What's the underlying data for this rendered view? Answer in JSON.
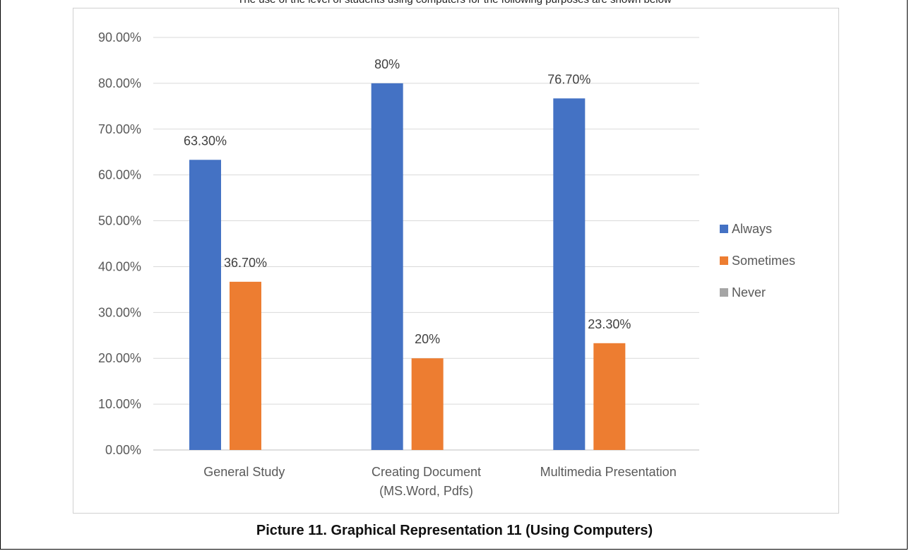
{
  "page": {
    "top_text": "The use of the level of students using computers for the following purposes are shown below",
    "caption": "Picture 11. Graphical Representation 11 (Using Computers)"
  },
  "chart_data": {
    "type": "bar",
    "title": "",
    "xlabel": "",
    "ylabel": "",
    "ylim": [
      0,
      0.9
    ],
    "y_ticks": [
      0,
      0.1,
      0.2,
      0.3,
      0.4,
      0.5,
      0.6,
      0.7,
      0.8,
      0.9
    ],
    "y_tick_labels": [
      "0.00%",
      "10.00%",
      "20.00%",
      "30.00%",
      "40.00%",
      "50.00%",
      "60.00%",
      "70.00%",
      "80.00%",
      "90.00%"
    ],
    "categories": [
      "General Study",
      "Creating Document (MS.Word, Pdfs)",
      "Multimedia Presentation"
    ],
    "category_label_lines": [
      [
        "General Study"
      ],
      [
        "Creating Document",
        "(MS.Word, Pdfs)"
      ],
      [
        "Multimedia Presentation"
      ]
    ],
    "grid": true,
    "legend_position": "right",
    "series": [
      {
        "name": "Always",
        "color": "#4472C4",
        "values": [
          0.633,
          0.8,
          0.767
        ],
        "labels": [
          "63.30%",
          "80%",
          "76.70%"
        ]
      },
      {
        "name": "Sometimes",
        "color": "#ED7D31",
        "values": [
          0.367,
          0.2,
          0.233
        ],
        "labels": [
          "36.70%",
          "20%",
          "23.30%"
        ]
      },
      {
        "name": "Never",
        "color": "#A5A5A5",
        "values": [
          null,
          null,
          null
        ],
        "labels": [
          "",
          "",
          ""
        ]
      }
    ]
  }
}
